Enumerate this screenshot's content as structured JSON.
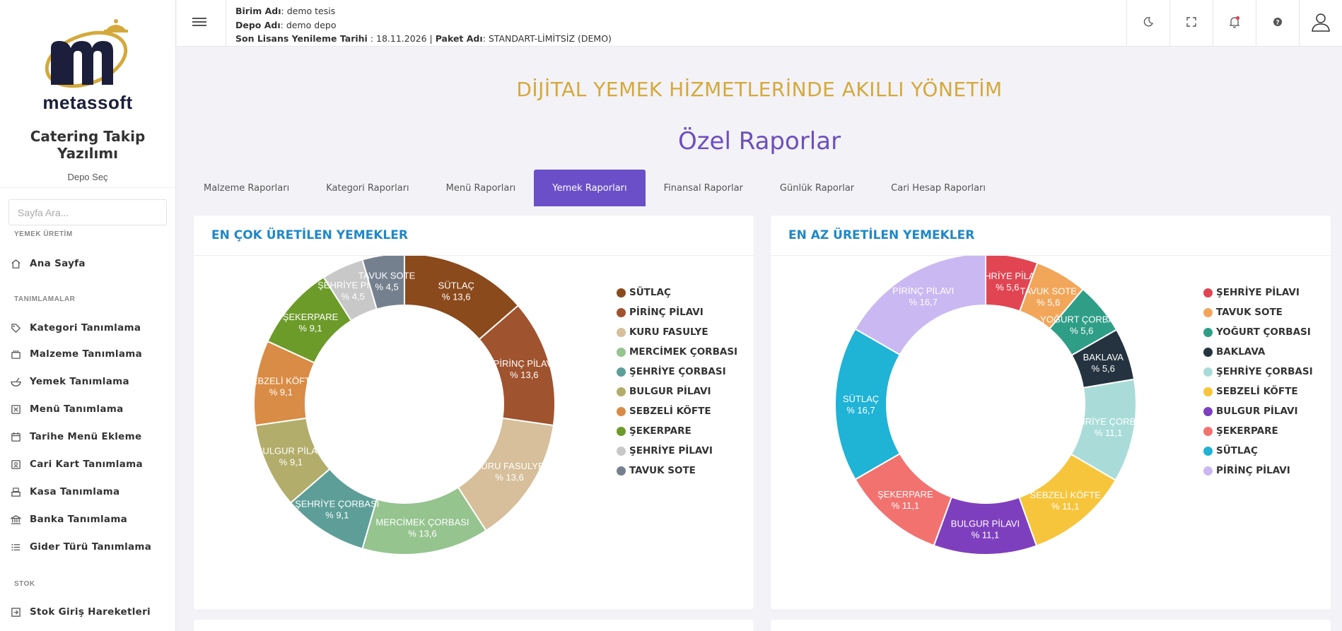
{
  "sidebar": {
    "logo_text": "metassoft",
    "app_name": "Catering Takip Yazılımı",
    "depo_sec": "Depo Seç",
    "search_placeholder": "Sayfa Ara...",
    "sections": [
      {
        "label": "YEMEK ÜRETİM"
      },
      {
        "label": "TANIMLAMALAR"
      },
      {
        "label": "STOK"
      }
    ],
    "items": [
      {
        "label": "Ana Sayfa",
        "icon": "home-icon"
      },
      {
        "label": "Kategori Tanımlama",
        "icon": "tag-icon"
      },
      {
        "label": "Malzeme Tanımlama",
        "icon": "ingredients-icon"
      },
      {
        "label": "Yemek Tanımlama",
        "icon": "bowl-icon"
      },
      {
        "label": "Menü Tanımlama",
        "icon": "menu-icon"
      },
      {
        "label": "Tarihe Menü Ekleme",
        "icon": "calendar-icon"
      },
      {
        "label": "Cari Kart Tanımlama",
        "icon": "id-card-icon"
      },
      {
        "label": "Kasa Tanımlama",
        "icon": "cash-register-icon"
      },
      {
        "label": "Banka Tanımlama",
        "icon": "bank-icon"
      },
      {
        "label": "Gider Türü Tanımlama",
        "icon": "list-icon"
      },
      {
        "label": "Stok Giriş Hareketleri",
        "icon": "stock-in-icon"
      }
    ]
  },
  "header": {
    "birim_label": "Birim Adı",
    "birim_value": ": demo tesis",
    "depo_label": "Depo Adı",
    "depo_value": ": demo depo",
    "lisans_label": "Son Lisans Yenileme Tarihi",
    "lisans_value": " : 18.11.2026 | ",
    "paket_label": "Paket Adı",
    "paket_value": ": STANDART-LİMİTSİZ (DEMO)",
    "icons": [
      "moon-icon",
      "fullscreen-icon",
      "bell-icon",
      "help-icon",
      "user-icon"
    ]
  },
  "main": {
    "tagline": "DİJİTAL YEMEK HİZMETLERİNDE AKILLI YÖNETİM",
    "title": "Özel Raporlar",
    "tabs": [
      {
        "label": "Malzeme Raporları"
      },
      {
        "label": "Kategori Raporları"
      },
      {
        "label": "Menü Raporları"
      },
      {
        "label": "Yemek Raporları",
        "active": true
      },
      {
        "label": "Finansal Raporlar"
      },
      {
        "label": "Günlük Raporlar"
      },
      {
        "label": "Cari Hesap Raporları"
      }
    ]
  },
  "chart_data": [
    {
      "type": "pie",
      "title": "EN ÇOK ÜRETİLEN YEMEKLER",
      "categories": [
        "SÜTLAÇ",
        "PİRİNÇ PİLAVI",
        "KURU FASULYE",
        "MERCİMEK ÇORBASI",
        "ŞEHRİYE ÇORBASI",
        "BULGUR PİLAVI",
        "SEBZELİ KÖFTE",
        "ŞEKERPARE",
        "ŞEHRİYE PİLAVI",
        "TAVUK SOTE"
      ],
      "values": [
        13.6,
        13.6,
        13.6,
        13.6,
        9.1,
        9.1,
        9.1,
        9.1,
        4.5,
        4.5
      ],
      "labels": [
        "% 13,6",
        "% 13,6",
        "% 13,6",
        "% 13,6",
        "% 9,1",
        "% 9,1",
        "% 9,1",
        "% 9,1",
        "% 4,5",
        "% 4,5"
      ],
      "colors": [
        "#8b4a1c",
        "#a0532f",
        "#d6bf9a",
        "#95c48f",
        "#5d9e98",
        "#b2ad6a",
        "#d98c45",
        "#6d9b2a",
        "#c8c8c8",
        "#75808f"
      ],
      "legend_position": "right"
    },
    {
      "type": "pie",
      "title": "EN AZ ÜRETİLEN YEMEKLER",
      "categories": [
        "ŞEHRİYE PİLAVI",
        "TAVUK SOTE",
        "YOĞURT ÇORBASI",
        "BAKLAVA",
        "ŞEHRİYE ÇORBASI",
        "SEBZELİ KÖFTE",
        "BULGUR PİLAVI",
        "ŞEKERPARE",
        "SÜTLAÇ",
        "PİRİNÇ PİLAVI"
      ],
      "values": [
        5.6,
        5.6,
        5.6,
        5.6,
        11.1,
        11.1,
        11.1,
        11.1,
        16.7,
        16.7
      ],
      "labels": [
        "% 5,6",
        "% 5,6",
        "% 5,6",
        "% 5,6",
        "% 11,1",
        "% 11,1",
        "% 11,1",
        "% 11,1",
        "% 16,7",
        "% 16,7"
      ],
      "colors": [
        "#e24552",
        "#f2a65a",
        "#2f9e87",
        "#24333f",
        "#a9dcd9",
        "#f7c53b",
        "#7e3fbf",
        "#f2726f",
        "#1fb3d6",
        "#c9b8f2"
      ],
      "legend_position": "right"
    }
  ]
}
